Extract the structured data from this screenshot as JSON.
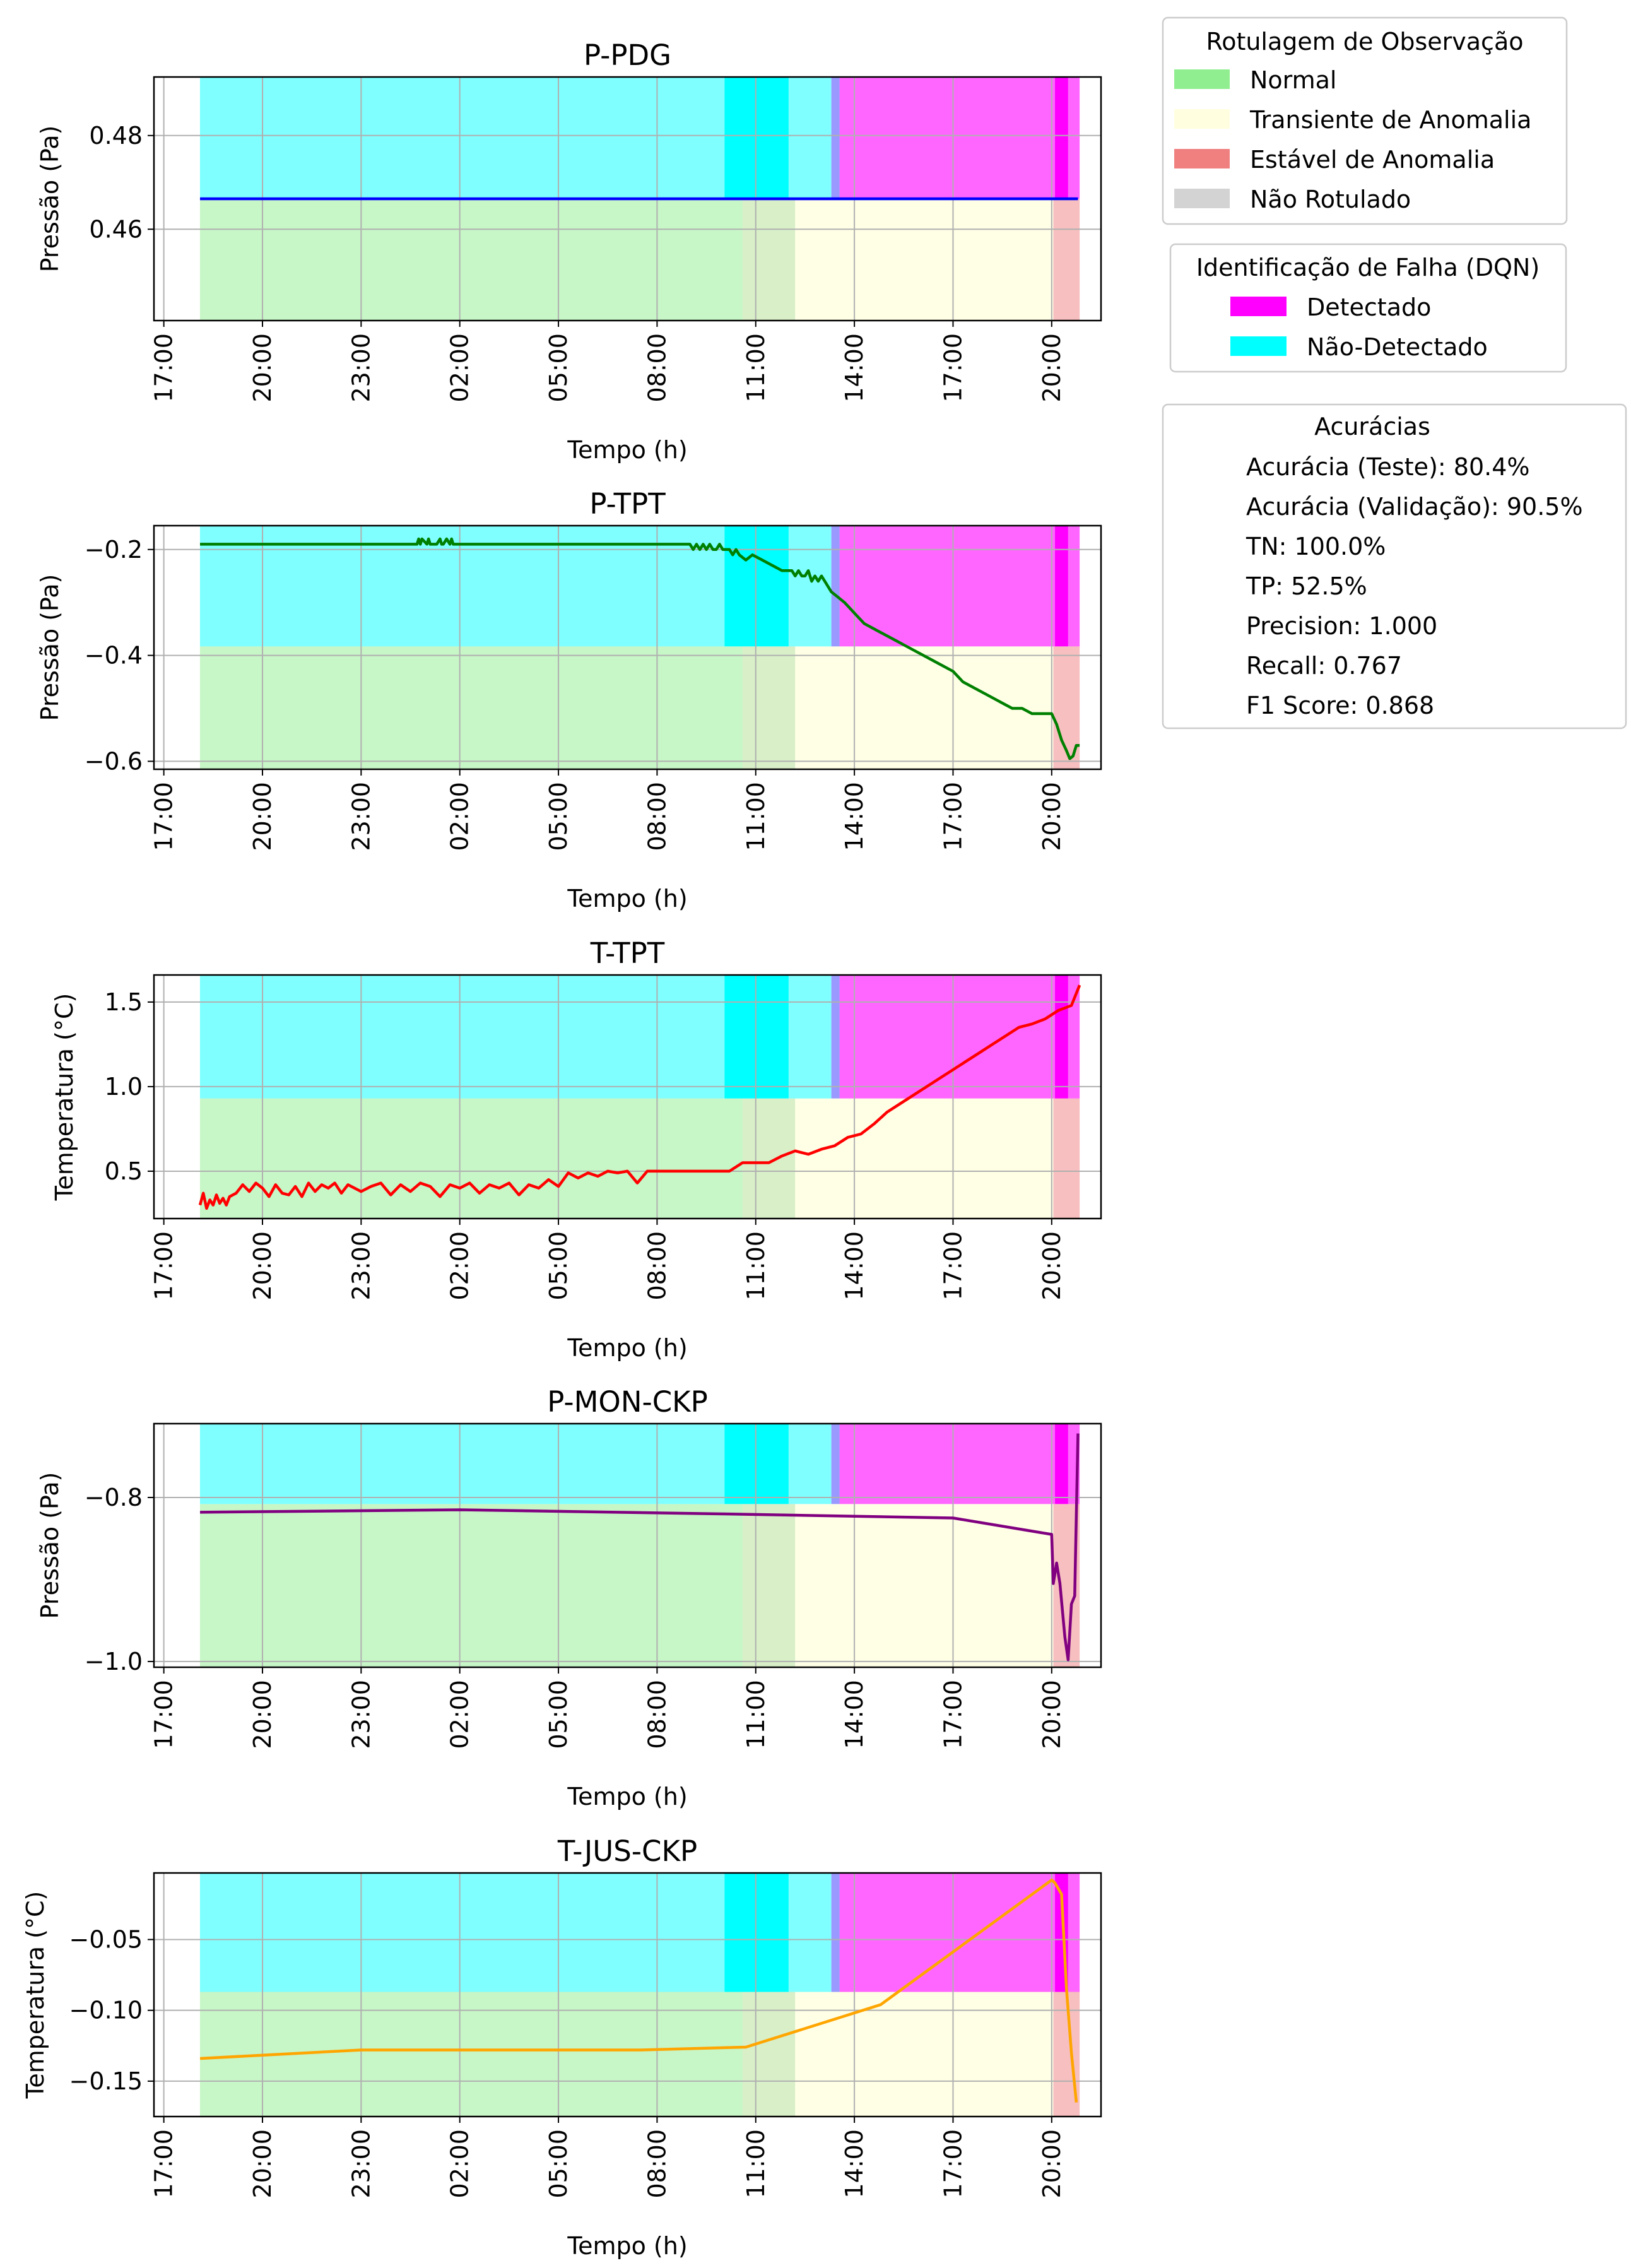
{
  "legends": {
    "labeling": {
      "title": "Rotulagem de Observação",
      "items": [
        {
          "label": "Normal",
          "color": "#90ee90"
        },
        {
          "label": "Transiente de Anomalia",
          "color": "#ffffe0"
        },
        {
          "label": "Estável de Anomalia",
          "color": "#f08080"
        },
        {
          "label": "Não Rotulado",
          "color": "#d3d3d3"
        }
      ]
    },
    "detection": {
      "title": "Identificação de Falha (DQN)",
      "items": [
        {
          "label": "Detectado",
          "color": "#ff00ff"
        },
        {
          "label": "Não-Detectado",
          "color": "#00ffff"
        }
      ]
    },
    "metrics": {
      "title": "Acurácias",
      "lines": [
        "Acurácia (Teste): 80.4%",
        "Acurácia (Validação): 90.5%",
        "TN: 100.0%",
        "TP: 52.5%",
        "Precision: 1.000",
        "Recall: 0.767",
        "F1 Score: 0.868"
      ]
    }
  },
  "chart_data": [
    {
      "type": "line",
      "title": "P-PDG",
      "xlabel": "Tempo (h)",
      "ylabel": "Pressão (Pa)",
      "x_unit": "hours since 17:00 (axis shows clock time)",
      "xlim": [
        -0.3,
        28.5
      ],
      "ylim": [
        0.4405,
        0.4925
      ],
      "xtick_values": [
        0,
        3,
        6,
        9,
        12,
        15,
        18,
        21,
        24,
        27
      ],
      "xtick_labels": [
        "17:00",
        "20:00",
        "23:00",
        "02:00",
        "05:00",
        "08:00",
        "11:00",
        "14:00",
        "17:00",
        "20:00"
      ],
      "ytick_values": [
        0.46,
        0.48
      ],
      "ytick_labels": [
        "0.46",
        "0.48"
      ],
      "line_color": "#0000ff",
      "series": [
        {
          "x": [
            1.1,
            27.8
          ],
          "y": [
            0.4665,
            0.4665
          ]
        }
      ],
      "split_value": 0.4665
    },
    {
      "type": "line",
      "title": "P-TPT",
      "xlabel": "Tempo (h)",
      "ylabel": "Pressão (Pa)",
      "x_unit": "hours since 17:00 (axis shows clock time)",
      "xlim": [
        -0.3,
        28.5
      ],
      "ylim": [
        -0.615,
        -0.155
      ],
      "xtick_values": [
        0,
        3,
        6,
        9,
        12,
        15,
        18,
        21,
        24,
        27
      ],
      "xtick_labels": [
        "17:00",
        "20:00",
        "23:00",
        "02:00",
        "05:00",
        "08:00",
        "11:00",
        "14:00",
        "17:00",
        "20:00"
      ],
      "ytick_values": [
        -0.6,
        -0.4,
        -0.2
      ],
      "ytick_labels": [
        "−0.6",
        "−0.4",
        "−0.2"
      ],
      "line_color": "#008000",
      "series": [
        {
          "x": [
            1.1,
            7.7,
            7.75,
            7.8,
            7.85,
            8.0,
            8.05,
            8.1,
            8.2,
            8.3,
            8.4,
            8.45,
            8.5,
            8.6,
            8.7,
            8.75,
            8.8,
            16.0,
            16.1,
            16.2,
            16.3,
            16.4,
            16.5,
            16.6,
            16.7,
            16.8,
            16.9,
            17.0,
            17.1,
            17.2,
            17.3,
            17.4,
            17.5,
            17.7,
            17.9,
            18.2,
            18.5,
            18.8,
            19.1,
            19.2,
            19.3,
            19.4,
            19.5,
            19.6,
            19.7,
            19.8,
            19.9,
            20.0,
            20.1,
            20.3,
            20.5,
            20.7,
            21.0,
            21.3,
            21.6,
            21.9,
            22.2,
            22.5,
            22.8,
            23.1,
            23.4,
            23.7,
            24.0,
            24.3,
            24.6,
            24.9,
            25.2,
            25.5,
            25.8,
            26.1,
            26.4,
            26.7,
            27.0,
            27.15,
            27.3,
            27.45,
            27.55,
            27.65,
            27.75,
            27.85
          ],
          "y": [
            -0.19,
            -0.19,
            -0.18,
            -0.19,
            -0.18,
            -0.19,
            -0.18,
            -0.19,
            -0.19,
            -0.19,
            -0.18,
            -0.19,
            -0.19,
            -0.18,
            -0.19,
            -0.18,
            -0.19,
            -0.19,
            -0.2,
            -0.19,
            -0.2,
            -0.19,
            -0.2,
            -0.19,
            -0.2,
            -0.2,
            -0.19,
            -0.2,
            -0.2,
            -0.2,
            -0.21,
            -0.2,
            -0.21,
            -0.22,
            -0.21,
            -0.22,
            -0.23,
            -0.24,
            -0.24,
            -0.25,
            -0.24,
            -0.25,
            -0.25,
            -0.24,
            -0.26,
            -0.25,
            -0.26,
            -0.25,
            -0.26,
            -0.28,
            -0.29,
            -0.3,
            -0.32,
            -0.34,
            -0.35,
            -0.36,
            -0.37,
            -0.38,
            -0.39,
            -0.4,
            -0.41,
            -0.42,
            -0.43,
            -0.45,
            -0.46,
            -0.47,
            -0.48,
            -0.49,
            -0.5,
            -0.5,
            -0.51,
            -0.51,
            -0.51,
            -0.53,
            -0.56,
            -0.58,
            -0.595,
            -0.59,
            -0.57,
            -0.57
          ]
        }
      ],
      "split_value": -0.383
    },
    {
      "type": "line",
      "title": "T-TPT",
      "xlabel": "Tempo (h)",
      "ylabel": "Temperatura (°C)",
      "x_unit": "hours since 17:00 (axis shows clock time)",
      "xlim": [
        -0.3,
        28.5
      ],
      "ylim": [
        0.22,
        1.66
      ],
      "xtick_values": [
        0,
        3,
        6,
        9,
        12,
        15,
        18,
        21,
        24,
        27
      ],
      "xtick_labels": [
        "17:00",
        "20:00",
        "23:00",
        "02:00",
        "05:00",
        "08:00",
        "11:00",
        "14:00",
        "17:00",
        "20:00"
      ],
      "ytick_values": [
        0.5,
        1.0,
        1.5
      ],
      "ytick_labels": [
        "0.5",
        "1.0",
        "1.5"
      ],
      "line_color": "#ff0000",
      "series": [
        {
          "x": [
            1.1,
            1.2,
            1.3,
            1.4,
            1.5,
            1.6,
            1.7,
            1.8,
            1.9,
            2.0,
            2.2,
            2.4,
            2.6,
            2.8,
            3.0,
            3.2,
            3.4,
            3.6,
            3.8,
            4.0,
            4.2,
            4.4,
            4.6,
            4.8,
            5.0,
            5.2,
            5.4,
            5.6,
            5.8,
            6.0,
            6.3,
            6.6,
            6.9,
            7.2,
            7.5,
            7.8,
            8.1,
            8.4,
            8.7,
            9.0,
            9.3,
            9.6,
            9.9,
            10.2,
            10.5,
            10.8,
            11.1,
            11.4,
            11.7,
            12.0,
            12.3,
            12.6,
            12.9,
            13.2,
            13.5,
            13.8,
            14.1,
            14.4,
            14.7,
            15.0,
            15.3,
            15.6,
            15.9,
            16.2,
            16.5,
            16.8,
            17.2,
            17.6,
            18.0,
            18.4,
            18.8,
            19.2,
            19.6,
            20.0,
            20.4,
            20.8,
            21.2,
            21.6,
            22.0,
            22.4,
            22.8,
            23.2,
            23.6,
            24.0,
            24.4,
            24.8,
            25.2,
            25.6,
            26.0,
            26.4,
            26.8,
            27.2,
            27.6,
            27.85
          ],
          "y": [
            0.3,
            0.37,
            0.28,
            0.33,
            0.3,
            0.36,
            0.31,
            0.34,
            0.3,
            0.35,
            0.37,
            0.42,
            0.38,
            0.43,
            0.4,
            0.35,
            0.42,
            0.37,
            0.36,
            0.41,
            0.35,
            0.43,
            0.38,
            0.42,
            0.4,
            0.43,
            0.37,
            0.42,
            0.4,
            0.38,
            0.41,
            0.43,
            0.36,
            0.42,
            0.38,
            0.43,
            0.41,
            0.35,
            0.42,
            0.4,
            0.43,
            0.37,
            0.42,
            0.4,
            0.43,
            0.36,
            0.42,
            0.4,
            0.45,
            0.41,
            0.49,
            0.46,
            0.49,
            0.47,
            0.5,
            0.49,
            0.5,
            0.43,
            0.5,
            0.5,
            0.5,
            0.5,
            0.5,
            0.5,
            0.5,
            0.5,
            0.5,
            0.55,
            0.55,
            0.55,
            0.59,
            0.62,
            0.6,
            0.63,
            0.65,
            0.7,
            0.72,
            0.78,
            0.85,
            0.9,
            0.95,
            1.0,
            1.05,
            1.1,
            1.15,
            1.2,
            1.25,
            1.3,
            1.35,
            1.37,
            1.4,
            1.45,
            1.48,
            1.6
          ]
        }
      ],
      "split_value": 0.93
    },
    {
      "type": "line",
      "title": "P-MON-CKP",
      "xlabel": "Tempo (h)",
      "ylabel": "Pressão (Pa)",
      "x_unit": "hours since 17:00 (axis shows clock time)",
      "xlim": [
        -0.3,
        28.5
      ],
      "ylim": [
        -1.007,
        -0.71
      ],
      "xtick_values": [
        0,
        3,
        6,
        9,
        12,
        15,
        18,
        21,
        24,
        27
      ],
      "xtick_labels": [
        "17:00",
        "20:00",
        "23:00",
        "02:00",
        "05:00",
        "08:00",
        "11:00",
        "14:00",
        "17:00",
        "20:00"
      ],
      "ytick_values": [
        -1.0,
        -0.8
      ],
      "ytick_labels": [
        "−1.0",
        "−0.8"
      ],
      "line_color": "#800080",
      "series": [
        {
          "x": [
            1.1,
            9.0,
            17.0,
            24.0,
            27.0,
            27.05,
            27.15,
            27.25,
            27.4,
            27.5,
            27.6,
            27.7,
            27.8
          ],
          "y": [
            -0.818,
            -0.815,
            -0.82,
            -0.825,
            -0.845,
            -0.905,
            -0.88,
            -0.905,
            -0.97,
            -0.998,
            -0.93,
            -0.92,
            -0.722
          ]
        }
      ],
      "split_value": -0.808
    },
    {
      "type": "line",
      "title": "T-JUS-CKP",
      "xlabel": "Tempo (h)",
      "ylabel": "Temperatura (°C)",
      "x_unit": "hours since 17:00 (axis shows clock time)",
      "xlim": [
        -0.3,
        28.5
      ],
      "ylim": [
        -0.175,
        -0.003
      ],
      "xtick_values": [
        0,
        3,
        6,
        9,
        12,
        15,
        18,
        21,
        24,
        27
      ],
      "xtick_labels": [
        "17:00",
        "20:00",
        "23:00",
        "02:00",
        "05:00",
        "08:00",
        "11:00",
        "14:00",
        "17:00",
        "20:00"
      ],
      "ytick_values": [
        -0.15,
        -0.1,
        -0.05
      ],
      "ytick_labels": [
        "−0.15",
        "−0.10",
        "−0.05"
      ],
      "line_color": "#ffa500",
      "series": [
        {
          "x": [
            1.1,
            6.0,
            14.5,
            17.7,
            21.8,
            27.0,
            27.1,
            27.2,
            27.3,
            27.45,
            27.6,
            27.75
          ],
          "y": [
            -0.134,
            -0.128,
            -0.128,
            -0.126,
            -0.096,
            -0.008,
            -0.01,
            -0.014,
            -0.018,
            -0.085,
            -0.13,
            -0.165
          ]
        }
      ],
      "split_value": -0.087
    }
  ],
  "background_bands": {
    "bottom_half": [
      {
        "x0": 1.1,
        "x1": 17.6,
        "color": "#90ee90",
        "opacity": 0.5
      },
      {
        "x0": 17.6,
        "x1": 19.2,
        "color": "#c8e8b0",
        "opacity": 0.7
      },
      {
        "x0": 19.2,
        "x1": 27.05,
        "color": "#ffffe0",
        "opacity": 0.8
      },
      {
        "x0": 27.05,
        "x1": 27.85,
        "color": "#f08080",
        "opacity": 0.5
      }
    ],
    "top_half": [
      {
        "x0": 1.1,
        "x1": 17.05,
        "color": "#00ffff",
        "opacity": 0.5
      },
      {
        "x0": 17.05,
        "x1": 19.0,
        "color": "#00ffff",
        "opacity": 1.0
      },
      {
        "x0": 19.0,
        "x1": 20.3,
        "color": "#00ffff",
        "opacity": 0.5
      },
      {
        "x0": 20.3,
        "x1": 20.55,
        "color": "#8080ff",
        "opacity": 0.8
      },
      {
        "x0": 20.55,
        "x1": 27.1,
        "color": "#ff00ff",
        "opacity": 0.6
      },
      {
        "x0": 27.1,
        "x1": 27.5,
        "color": "#ff00ff",
        "opacity": 1.0
      },
      {
        "x0": 27.5,
        "x1": 27.85,
        "color": "#ff00ff",
        "opacity": 0.6
      }
    ]
  }
}
